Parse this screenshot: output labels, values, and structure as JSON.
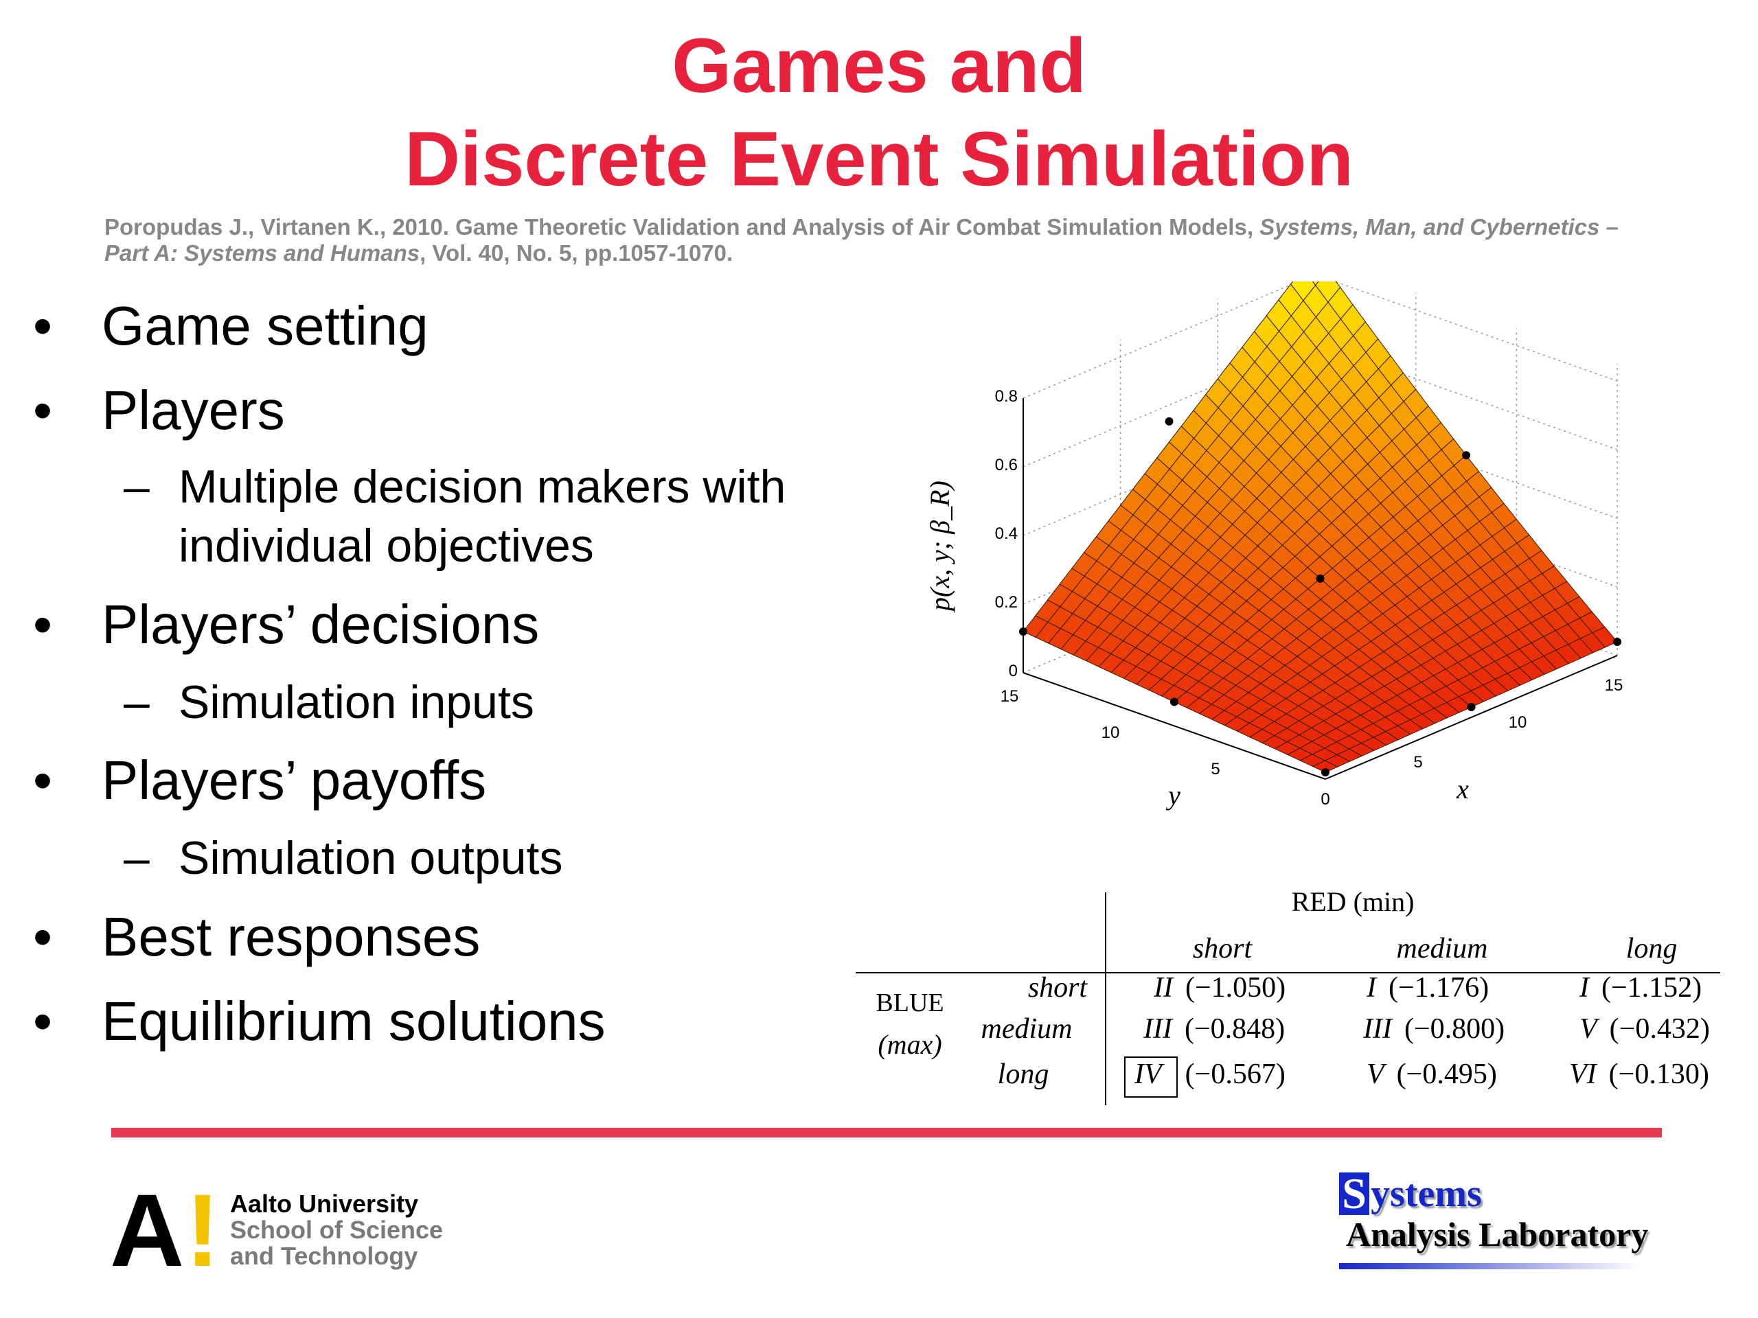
{
  "slide": {
    "title_line1": "Games and",
    "title_line2": "Discrete Event Simulation",
    "title_color": "#e8223c",
    "citation": {
      "part1": "Poropudas J., Virtanen K., 2010. Game Theoretic Validation and Analysis of Air Combat Simulation Models,",
      "journal": "Systems, Man, and Cybernetics – Part A: Systems and Humans",
      "part2": ", Vol. 40, No. 5, pp.1057-1070."
    },
    "bullets": [
      {
        "text": "Game setting",
        "subs": []
      },
      {
        "text": "Players",
        "subs": [
          "Multiple decision makers with individual objectives"
        ]
      },
      {
        "text": "Players’ decisions",
        "subs": [
          "Simulation inputs"
        ]
      },
      {
        "text": "Players’ payoffs",
        "subs": [
          "Simulation outputs"
        ]
      },
      {
        "text": "Best responses",
        "subs": []
      },
      {
        "text": "Equilibrium solutions",
        "subs": []
      }
    ],
    "bullet_symbol": "•",
    "dash_symbol": "–"
  },
  "plot": {
    "zlabel": "p(x, y; β_R)",
    "xlabel": "x",
    "ylabel": "y",
    "z_ticks": [
      "0",
      "0.2",
      "0.4",
      "0.6",
      "0.8"
    ],
    "x_ticks": [
      "5",
      "10",
      "15"
    ],
    "y_ticks": [
      "15",
      "10",
      "5"
    ],
    "origin_tick": "0",
    "colors": {
      "low": "#e8200c",
      "high": "#ffe000"
    }
  },
  "payoff_table": {
    "red_header": "RED (min)",
    "blue_header_line1": "BLUE",
    "blue_header_line2": "(max)",
    "columns": [
      "short",
      "medium",
      "long"
    ],
    "rows": [
      {
        "label": "short",
        "cells": [
          [
            "II",
            "(−1.050)"
          ],
          [
            "I",
            "(−1.176)"
          ],
          [
            "I",
            "(−1.152)"
          ]
        ]
      },
      {
        "label": "medium",
        "cells": [
          [
            "III",
            "(−0.848)"
          ],
          [
            "III",
            "(−0.800)"
          ],
          [
            "V",
            "(−0.432)"
          ]
        ]
      },
      {
        "label": "long",
        "cells": [
          [
            "IV",
            "(−0.567)"
          ],
          [
            "V",
            "(−0.495)"
          ],
          [
            "VI",
            "(−0.130)"
          ]
        ]
      }
    ],
    "boxed_cell": "IV"
  },
  "footer": {
    "aalto_letter": "A",
    "aalto_mark": "!",
    "aalto_line1": "Aalto University",
    "aalto_line2": "School of Science",
    "aalto_line3": "and Technology",
    "sal_initial": "S",
    "sal_word1": "ystems",
    "sal_word2": "Analysis Laboratory"
  }
}
